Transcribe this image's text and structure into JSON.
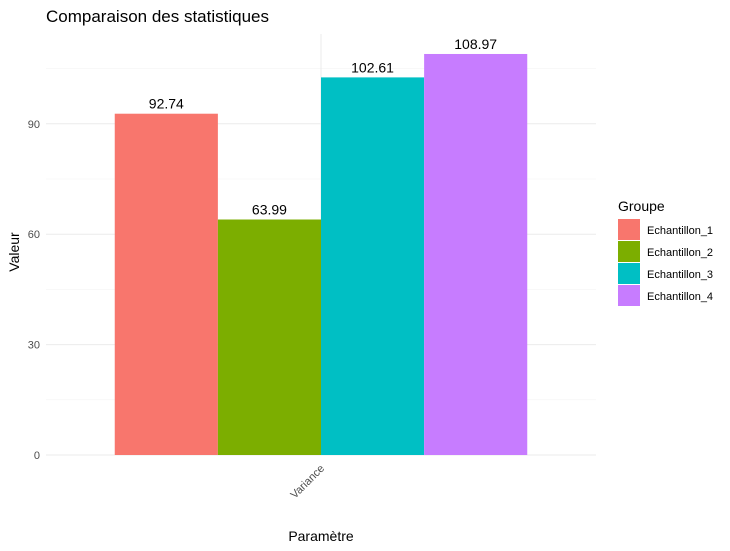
{
  "chart_data": {
    "type": "bar",
    "title": "Comparaison des statistiques",
    "xlabel": "Paramètre",
    "ylabel": "Valeur",
    "categories": [
      "Variance"
    ],
    "series": [
      {
        "name": "Echantillon_1",
        "values": [
          92.74
        ],
        "label": "92.74",
        "color": "#F8766D"
      },
      {
        "name": "Echantillon_2",
        "values": [
          63.99
        ],
        "label": "63.99",
        "color": "#7CAE00"
      },
      {
        "name": "Echantillon_3",
        "values": [
          102.61
        ],
        "label": "102.61",
        "color": "#00BFC4"
      },
      {
        "name": "Echantillon_4",
        "values": [
          108.97
        ],
        "label": "108.97",
        "color": "#C77CFF"
      }
    ],
    "yticks": [
      0,
      30,
      60,
      90
    ],
    "ylim": [
      0,
      114.4
    ],
    "grid": true,
    "legend": {
      "title": "Groupe",
      "placement": "right"
    }
  }
}
